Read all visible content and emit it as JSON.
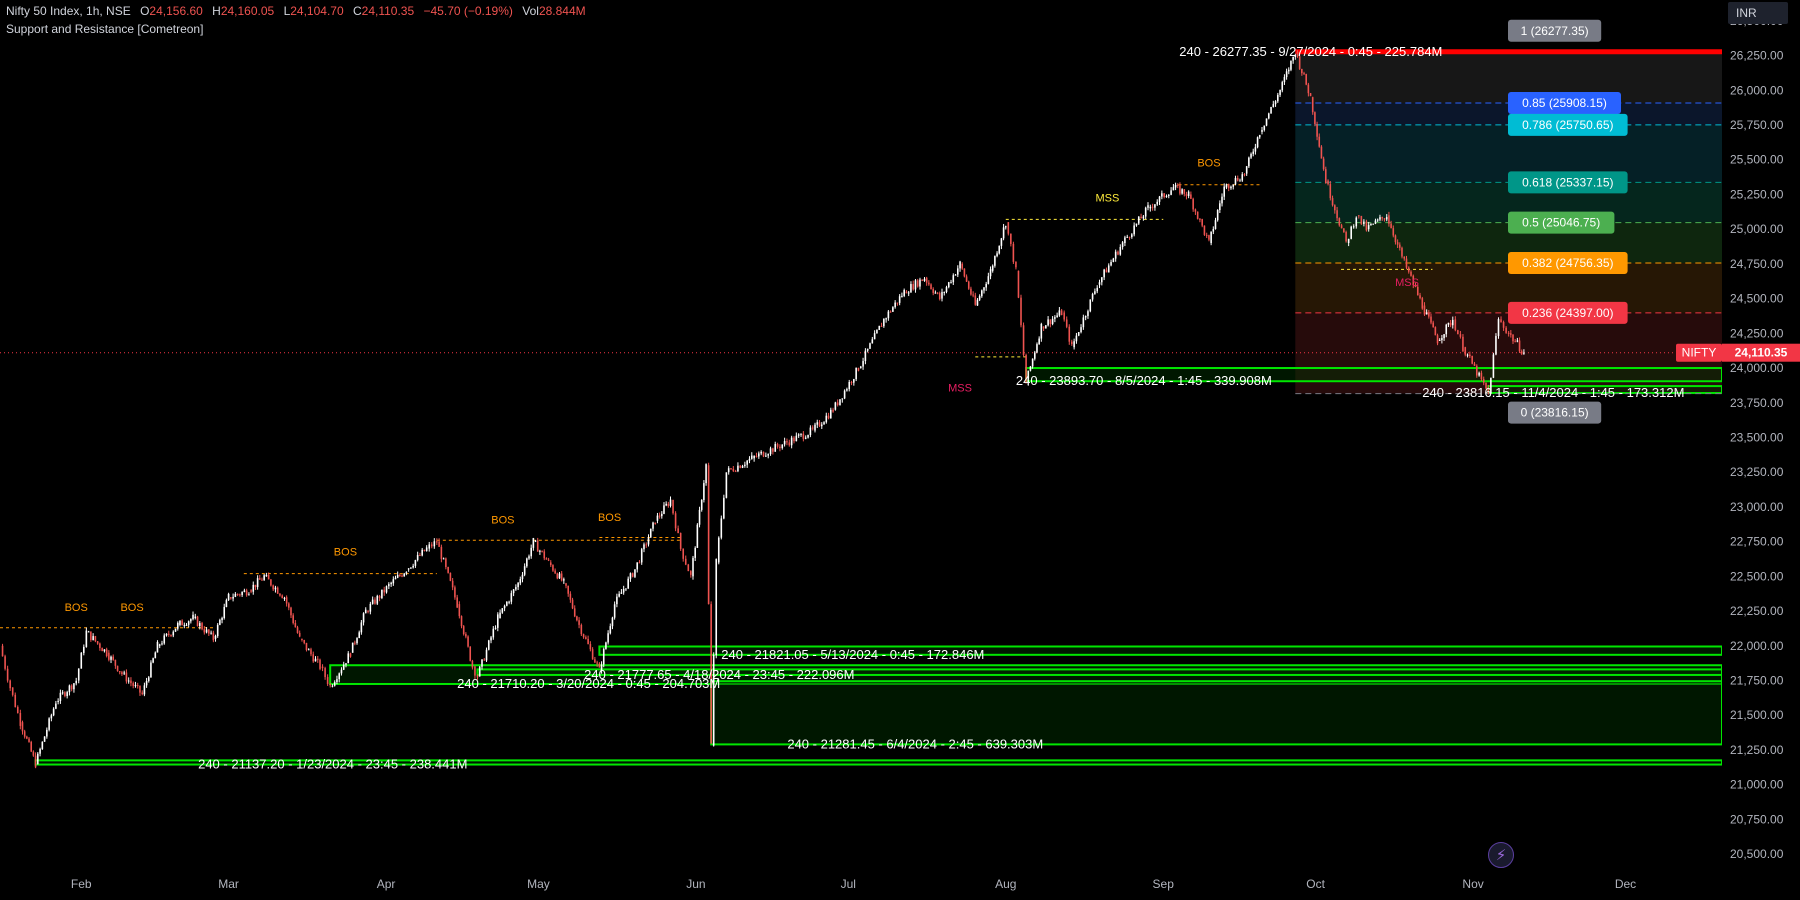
{
  "header": {
    "symbol": "Nifty 50 Index, 1h, NSE",
    "open_label": "O",
    "open_value": "24,156.60",
    "high_label": "H",
    "high_value": "24,160.05",
    "low_label": "L",
    "low_value": "24,104.70",
    "close_label": "C",
    "close_value": "24,110.35",
    "change": "−45.70 (−0.19%)",
    "vol_label": "Vol",
    "vol_value": "28.844M",
    "indicator": "Support and Resistance [Cometreon]"
  },
  "toolbar": {
    "currency": "INR"
  },
  "icons": {
    "flash": "lightning-icon"
  },
  "colors": {
    "up": "#ffffff",
    "down": "#ef5350",
    "green_zone": "#00e600",
    "bos": "#ff9800",
    "mss": "#ffeb3b",
    "mss_red": "#e91e63",
    "fib_top": "#ff0000",
    "price_tag": "#f23645"
  },
  "chart_data": {
    "type": "candlestick",
    "x_axis": {
      "labels": [
        "Feb",
        "Mar",
        "Apr",
        "May",
        "Jun",
        "Jul",
        "Aug",
        "Sep",
        "Oct",
        "Nov",
        "Dec"
      ],
      "range": [
        "2024-01-16",
        "2024-12-20"
      ]
    },
    "y_axis": {
      "min": 20400,
      "max": 26650,
      "step": 250,
      "tick_labels": [
        "20,500.00",
        "20,750.00",
        "21,000.00",
        "21,250.00",
        "21,500.00",
        "21,750.00",
        "22,000.00",
        "22,250.00",
        "22,500.00",
        "22,750.00",
        "23,000.00",
        "23,250.00",
        "23,500.00",
        "23,750.00",
        "24,000.00",
        "24,250.00",
        "24,500.00",
        "24,750.00",
        "25,000.00",
        "25,250.00",
        "25,500.00",
        "25,750.00",
        "26,000.00",
        "26,250.00",
        "26,500.00"
      ]
    },
    "price_path": [
      [
        "2024-01-16",
        22000
      ],
      [
        "2024-01-18",
        21700
      ],
      [
        "2024-01-20",
        21450
      ],
      [
        "2024-01-23",
        21150
      ],
      [
        "2024-01-27",
        21600
      ],
      [
        "2024-01-31",
        21750
      ],
      [
        "2024-02-02",
        22100
      ],
      [
        "2024-02-06",
        21950
      ],
      [
        "2024-02-09",
        21800
      ],
      [
        "2024-02-13",
        21650
      ],
      [
        "2024-02-16",
        22000
      ],
      [
        "2024-02-20",
        22150
      ],
      [
        "2024-02-23",
        22200
      ],
      [
        "2024-02-27",
        22050
      ],
      [
        "2024-03-01",
        22350
      ],
      [
        "2024-03-05",
        22400
      ],
      [
        "2024-03-08",
        22500
      ],
      [
        "2024-03-12",
        22350
      ],
      [
        "2024-03-15",
        22050
      ],
      [
        "2024-03-19",
        21850
      ],
      [
        "2024-03-21",
        21710
      ],
      [
        "2024-03-25",
        21950
      ],
      [
        "2024-03-28",
        22250
      ],
      [
        "2024-04-02",
        22450
      ],
      [
        "2024-04-05",
        22550
      ],
      [
        "2024-04-09",
        22700
      ],
      [
        "2024-04-11",
        22750
      ],
      [
        "2024-04-15",
        22300
      ],
      [
        "2024-04-18",
        21850
      ],
      [
        "2024-04-19",
        21780
      ],
      [
        "2024-04-23",
        22200
      ],
      [
        "2024-04-27",
        22450
      ],
      [
        "2024-04-30",
        22750
      ],
      [
        "2024-05-03",
        22600
      ],
      [
        "2024-05-06",
        22450
      ],
      [
        "2024-05-09",
        22150
      ],
      [
        "2024-05-13",
        21821
      ],
      [
        "2024-05-16",
        22300
      ],
      [
        "2024-05-20",
        22550
      ],
      [
        "2024-05-24",
        22900
      ],
      [
        "2024-05-27",
        23050
      ],
      [
        "2024-05-29",
        22700
      ],
      [
        "2024-05-31",
        22500
      ],
      [
        "2024-06-03",
        23300
      ],
      [
        "2024-06-04",
        21281
      ],
      [
        "2024-06-05",
        22600
      ],
      [
        "2024-06-07",
        23250
      ],
      [
        "2024-06-12",
        23350
      ],
      [
        "2024-06-18",
        23450
      ],
      [
        "2024-06-24",
        23550
      ],
      [
        "2024-06-28",
        23700
      ],
      [
        "2024-07-03",
        24000
      ],
      [
        "2024-07-08",
        24350
      ],
      [
        "2024-07-12",
        24550
      ],
      [
        "2024-07-16",
        24650
      ],
      [
        "2024-07-19",
        24500
      ],
      [
        "2024-07-23",
        24750
      ],
      [
        "2024-07-26",
        24450
      ],
      [
        "2024-07-29",
        24700
      ],
      [
        "2024-08-01",
        25050
      ],
      [
        "2024-08-03",
        24700
      ],
      [
        "2024-08-05",
        23893
      ],
      [
        "2024-08-08",
        24300
      ],
      [
        "2024-08-12",
        24400
      ],
      [
        "2024-08-14",
        24150
      ],
      [
        "2024-08-19",
        24600
      ],
      [
        "2024-08-24",
        24900
      ],
      [
        "2024-08-29",
        25150
      ],
      [
        "2024-09-03",
        25300
      ],
      [
        "2024-09-06",
        25250
      ],
      [
        "2024-09-10",
        24900
      ],
      [
        "2024-09-13",
        25300
      ],
      [
        "2024-09-17",
        25400
      ],
      [
        "2024-09-20",
        25700
      ],
      [
        "2024-09-24",
        26000
      ],
      [
        "2024-09-27",
        26277
      ],
      [
        "2024-09-30",
        25950
      ],
      [
        "2024-10-03",
        25350
      ],
      [
        "2024-10-07",
        24900
      ],
      [
        "2024-10-09",
        25100
      ],
      [
        "2024-10-11",
        25000
      ],
      [
        "2024-10-15",
        25100
      ],
      [
        "2024-10-18",
        24800
      ],
      [
        "2024-10-22",
        24450
      ],
      [
        "2024-10-25",
        24200
      ],
      [
        "2024-10-28",
        24350
      ],
      [
        "2024-10-30",
        24150
      ],
      [
        "2024-11-04",
        23816
      ],
      [
        "2024-11-06",
        24350
      ],
      [
        "2024-11-08",
        24250
      ],
      [
        "2024-11-11",
        24110
      ]
    ],
    "last_price": {
      "value": 24110.35,
      "label": "24,110.35",
      "symbol_label": "NIFTY"
    },
    "zones": [
      {
        "label": "240 - 21137.20  -  1/23/2024 - 23:45  -  238.441M",
        "start": "2024-01-23",
        "low": 21145,
        "high": 21175,
        "label_date": "2024-02-24"
      },
      {
        "label": "240 - 21710.20  -  3/20/2024 - 0:45  -  204.703M",
        "start": "2024-03-21",
        "low": 21725,
        "high": 21860,
        "label_date": "2024-04-15"
      },
      {
        "label": "240 - 21777.65  -  4/18/2024 - 23:45  -  222.096M",
        "start": "2024-04-19",
        "low": 21790,
        "high": 21830,
        "label_date": "2024-05-10"
      },
      {
        "label": "240 - 21821.05  -  5/13/2024 - 0:45  -  172.846M",
        "start": "2024-05-13",
        "low": 21935,
        "high": 21995,
        "label_date": "2024-06-06"
      },
      {
        "label": "240 - 21281.45  -  6/4/2024 - 2:45  -  639.303M",
        "start": "2024-06-04",
        "low": 21290,
        "high": 21745,
        "label_date": "2024-06-19"
      },
      {
        "label": "240 - 23893.70  -  8/5/2024 - 1:45  -  339.908M",
        "start": "2024-08-05",
        "low": 23905,
        "high": 24000,
        "label_date": "2024-08-03"
      },
      {
        "label": "240 - 23816.15  -  11/4/2024 - 1:45  -  173.312M",
        "start": "2024-11-04",
        "low": 23820,
        "high": 23870,
        "label_date": "2024-10-22"
      }
    ],
    "peak_label": {
      "label": "240 - 26277.35  -  9/27/2024 - 0:45  -  225.784M",
      "date": "2024-09-27",
      "value": 26277.35
    },
    "structure_lines": [
      {
        "type": "BOS",
        "from": "2024-01-16",
        "to": "2024-02-27",
        "value": 22130
      },
      {
        "type": "BOS",
        "from": "2024-03-04",
        "to": "2024-04-11",
        "value": 22520
      },
      {
        "type": "BOS",
        "from": "2024-04-11",
        "to": "2024-05-29",
        "value": 22760
      },
      {
        "type": "BOS",
        "from": "2024-05-13",
        "to": "2024-05-29",
        "value": 22780
      },
      {
        "type": "MSS",
        "from": "2024-08-01",
        "to": "2024-09-01",
        "value": 25070
      },
      {
        "type": "BOS",
        "from": "2024-09-04",
        "to": "2024-09-20",
        "value": 25320
      },
      {
        "type": "MSS",
        "from": "2024-10-06",
        "to": "2024-10-24",
        "value": 24710
      },
      {
        "type": "MSS",
        "from": "2024-07-26",
        "to": "2024-08-05",
        "value": 24080
      }
    ],
    "structure_labels": [
      {
        "text": "BOS",
        "date": "2024-01-31",
        "value": 22250,
        "kind": "bos"
      },
      {
        "text": "BOS",
        "date": "2024-02-11",
        "value": 22250,
        "kind": "bos"
      },
      {
        "text": "BOS",
        "date": "2024-03-24",
        "value": 22650,
        "kind": "bos"
      },
      {
        "text": "BOS",
        "date": "2024-04-24",
        "value": 22880,
        "kind": "bos"
      },
      {
        "text": "BOS",
        "date": "2024-05-15",
        "value": 22900,
        "kind": "bos"
      },
      {
        "text": "MSS",
        "date": "2024-08-21",
        "value": 25200,
        "kind": "mss"
      },
      {
        "text": "BOS",
        "date": "2024-09-10",
        "value": 25450,
        "kind": "bos"
      },
      {
        "text": "MSS",
        "date": "2024-10-19",
        "value": 24590,
        "kind": "mss_red"
      },
      {
        "text": "MSS",
        "date": "2024-07-23",
        "value": 23830,
        "kind": "mss_red"
      }
    ],
    "fibonacci": {
      "from": "2024-09-27",
      "levels": [
        {
          "ratio": "1",
          "label": "1 (26277.35)",
          "value": 26277.35,
          "color": "#787b86"
        },
        {
          "ratio": "0.85",
          "label": "0.85 (25908.15)",
          "value": 25908.15,
          "color": "#2962ff"
        },
        {
          "ratio": "0.786",
          "label": "0.786 (25750.65)",
          "value": 25750.65,
          "color": "#00bcd4"
        },
        {
          "ratio": "0.618",
          "label": "0.618 (25337.15)",
          "value": 25337.15,
          "color": "#009688"
        },
        {
          "ratio": "0.5",
          "label": "0.5 (25046.75)",
          "value": 25046.75,
          "color": "#4caf50"
        },
        {
          "ratio": "0.382",
          "label": "0.382 (24756.35)",
          "value": 24756.35,
          "color": "#ff9800"
        },
        {
          "ratio": "0.236",
          "label": "0.236 (24397.00)",
          "value": 24397.0,
          "color": "#f23645"
        },
        {
          "ratio": "0",
          "label": "0 (23816.15)",
          "value": 23816.15,
          "color": "#787b86"
        }
      ]
    }
  }
}
